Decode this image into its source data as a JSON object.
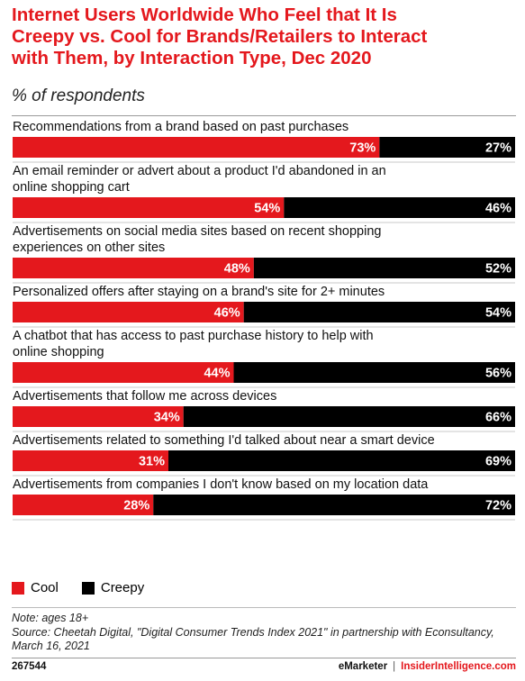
{
  "chart_data": {
    "type": "bar",
    "title_lines": [
      "Internet Users Worldwide Who Feel that It Is",
      "Creepy vs. Cool for Brands/Retailers to Interact",
      "with Them, by Interaction Type, Dec 2020"
    ],
    "subtitle": "% of respondents",
    "categories": [
      [
        "Recommendations from a brand based on past purchases"
      ],
      [
        "An email reminder or advert about a product I'd abandoned in an",
        "online shopping cart"
      ],
      [
        "Advertisements on social media sites based on recent shopping",
        "experiences on other sites"
      ],
      [
        "Personalized offers after staying on a brand's site for 2+ minutes"
      ],
      [
        "A chatbot that has access to past purchase history to help with",
        "online shopping"
      ],
      [
        "Advertisements  that follow me across devices"
      ],
      [
        "Advertisements related to something I'd talked about near a smart device"
      ],
      [
        "Advertisements from companies I don't know based on my location data"
      ]
    ],
    "series": [
      {
        "name": "Cool",
        "color": "#e4181d",
        "values": [
          73,
          54,
          48,
          46,
          44,
          34,
          31,
          28
        ],
        "labels": [
          "73%",
          "54%",
          "48%",
          "46%",
          "44%",
          "34%",
          "31%",
          "28%"
        ]
      },
      {
        "name": "Creepy",
        "color": "#000000",
        "values": [
          27,
          46,
          52,
          54,
          56,
          66,
          69,
          72
        ],
        "labels": [
          "27%",
          "46%",
          "52%",
          "54%",
          "56%",
          "66%",
          "69%",
          "72%"
        ]
      }
    ],
    "stacked": true,
    "xlim": [
      0,
      100
    ],
    "legend_position": "bottom-left"
  },
  "notes": {
    "note": "Note: ages 18+",
    "source": "Source: Cheetah Digital, \"Digital Consumer Trends Index 2021\" in partnership with Econsultancy, March 16, 2021"
  },
  "footer": {
    "id": "267544",
    "brand": "eMarketer",
    "separator": "|",
    "site": "InsiderIntelligence.com"
  }
}
